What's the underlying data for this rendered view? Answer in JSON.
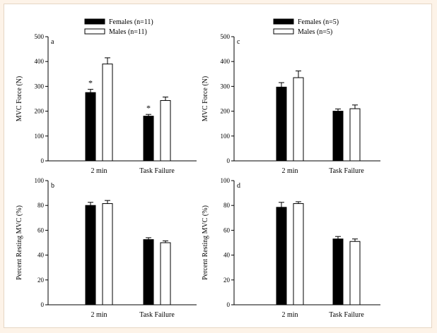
{
  "chart_data": [
    {
      "panel": "a",
      "type": "bar",
      "categories": [
        "2 min",
        "Task Failure"
      ],
      "series": [
        {
          "name": "Females (n=11)",
          "values": [
            275,
            180
          ],
          "errors": [
            13,
            7
          ],
          "fill": "#000000"
        },
        {
          "name": "Males (n=11)",
          "values": [
            390,
            243
          ],
          "errors": [
            25,
            14
          ],
          "fill": "#ffffff"
        }
      ],
      "significance": [
        {
          "series": 0,
          "category": 0,
          "text": "*"
        },
        {
          "series": 0,
          "category": 1,
          "text": "*"
        }
      ],
      "ylabel": "MVC Force (N)",
      "ylim": [
        0,
        500
      ],
      "yticks": [
        0,
        100,
        200,
        300,
        400,
        500
      ],
      "legend": "top"
    },
    {
      "panel": "c",
      "type": "bar",
      "categories": [
        "2 min",
        "Task Failure"
      ],
      "series": [
        {
          "name": "Females (n=5)",
          "values": [
            297,
            200
          ],
          "errors": [
            18,
            9
          ],
          "fill": "#000000"
        },
        {
          "name": "Males (n=5)",
          "values": [
            335,
            210
          ],
          "errors": [
            27,
            15
          ],
          "fill": "#ffffff"
        }
      ],
      "significance": [],
      "ylabel": "MVC Force (N)",
      "ylim": [
        0,
        500
      ],
      "yticks": [
        0,
        100,
        200,
        300,
        400,
        500
      ],
      "legend": "top"
    },
    {
      "panel": "b",
      "type": "bar",
      "categories": [
        "2 min",
        "Task Failure"
      ],
      "series": [
        {
          "name": "Females (n=11)",
          "values": [
            80,
            52.5
          ],
          "errors": [
            2.5,
            1.5
          ],
          "fill": "#000000"
        },
        {
          "name": "Males (n=11)",
          "values": [
            81.5,
            50
          ],
          "errors": [
            2.5,
            1.5
          ],
          "fill": "#ffffff"
        }
      ],
      "significance": [],
      "ylabel": "Percent Resting MVC (%)",
      "ylim": [
        0,
        100
      ],
      "yticks": [
        0,
        20,
        40,
        60,
        80,
        100
      ]
    },
    {
      "panel": "d",
      "type": "bar",
      "categories": [
        "2 min",
        "Task Failure"
      ],
      "series": [
        {
          "name": "Females (n=5)",
          "values": [
            78.5,
            53
          ],
          "errors": [
            4,
            2
          ],
          "fill": "#000000"
        },
        {
          "name": "Males (n=5)",
          "values": [
            81.5,
            51
          ],
          "errors": [
            1.5,
            2
          ],
          "fill": "#ffffff"
        }
      ],
      "significance": [],
      "ylabel": "Percent Resting MVC (%)",
      "ylim": [
        0,
        100
      ],
      "yticks": [
        0,
        20,
        40,
        60,
        80,
        100
      ]
    }
  ],
  "colors": {
    "page_background": "#fdf3e8",
    "figure_background": "#ffffff",
    "frame_border": "#e6d6c4"
  }
}
